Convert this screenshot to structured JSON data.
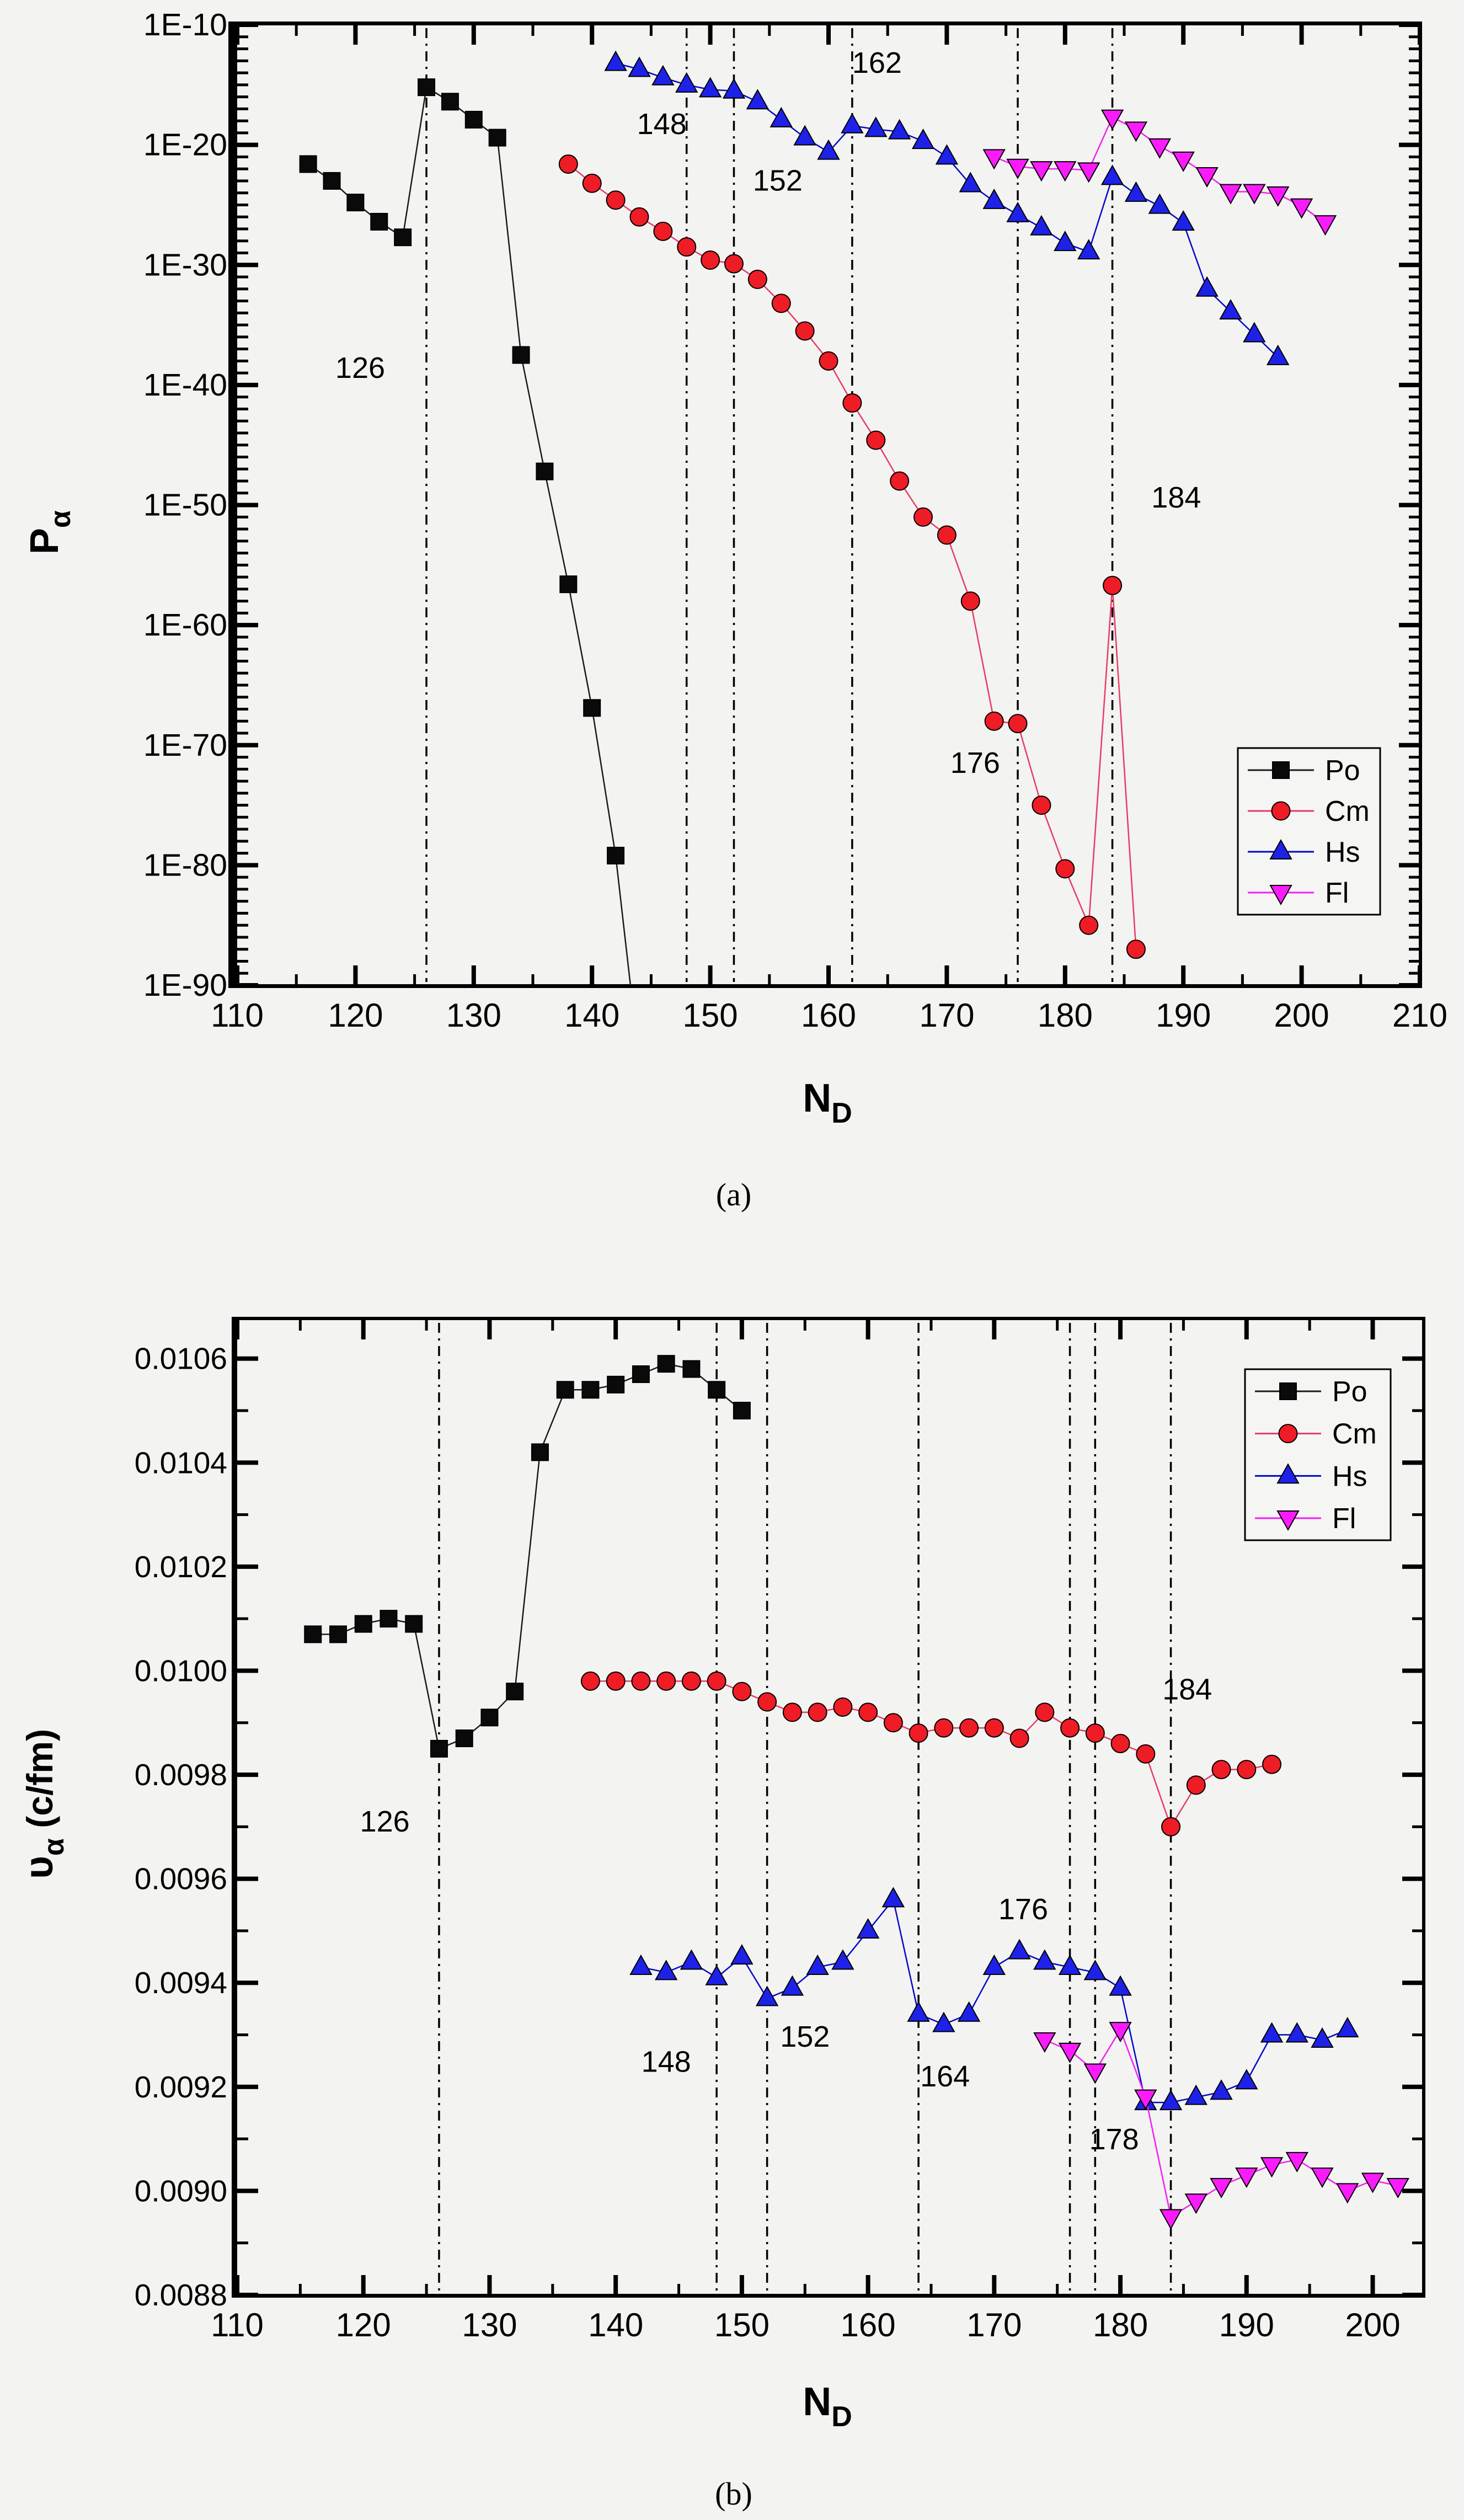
{
  "page": {
    "background": "#f3f3f1"
  },
  "figure": {
    "captions": {
      "a": "(a)",
      "b": "(b)"
    },
    "colors": {
      "po": "#0a0a0a",
      "cm": "#ee1c25",
      "hs": "#1e22e8",
      "fl": "#fa1bfa",
      "po_line": "#1a1a1a",
      "cm_line": "#e73b67",
      "hs_line": "#0008c8",
      "fl_line": "#f41ef4",
      "axis": "#000000",
      "annotation": "#111111"
    }
  },
  "chart_data": [
    {
      "id": "a",
      "type": "line",
      "title": "",
      "xlabel_main": "N",
      "xlabel_sub": "D",
      "ylabel_main": "P",
      "ylabel_sub": "α",
      "ylabel_rest": "",
      "x_axis": {
        "min": 110,
        "max": 210,
        "major_step": 10,
        "minor_step": 5,
        "tick_labels": [
          "110",
          "120",
          "130",
          "140",
          "150",
          "160",
          "170",
          "180",
          "190",
          "200",
          "210"
        ]
      },
      "y_axis": {
        "scale": "log10-exponent",
        "min": -90,
        "max": -10,
        "major_step": 10,
        "minor_step": 1,
        "ticks": [
          {
            "v": -10,
            "t": "1E-10"
          },
          {
            "v": -20,
            "t": "1E-20"
          },
          {
            "v": -30,
            "t": "1E-30"
          },
          {
            "v": -40,
            "t": "1E-40"
          },
          {
            "v": -50,
            "t": "1E-50"
          },
          {
            "v": -60,
            "t": "1E-60"
          },
          {
            "v": -70,
            "t": "1E-70"
          },
          {
            "v": -80,
            "t": "1E-80"
          },
          {
            "v": -90,
            "t": "1E-90"
          }
        ]
      },
      "shell_lines": [
        126,
        148,
        152,
        162,
        176,
        184
      ],
      "annotations": [
        {
          "text": "126",
          "x": 120.4,
          "y": -39.4
        },
        {
          "text": "148",
          "x": 145.9,
          "y": -19.1
        },
        {
          "text": "152",
          "x": 155.7,
          "y": -23.8
        },
        {
          "text": "162",
          "x": 164.1,
          "y": -14.0
        },
        {
          "text": "176",
          "x": 172.4,
          "y": -72.3
        },
        {
          "text": "184",
          "x": 189.4,
          "y": -50.2
        }
      ],
      "legend": {
        "items": [
          "Po",
          "Cm",
          "Hs",
          "Fl"
        ],
        "position": "right-lower"
      },
      "series": [
        {
          "name": "Po",
          "marker": "square",
          "color": "#0a0a0a",
          "line_color": "#1a1a1a",
          "x": [
            116,
            118,
            120,
            122,
            124,
            126,
            128,
            130,
            132,
            134,
            136,
            138,
            140,
            142
          ],
          "y": [
            -21.6,
            -23.0,
            -24.8,
            -26.4,
            -27.7,
            -15.2,
            -16.4,
            -17.9,
            -19.4,
            -37.5,
            -47.2,
            -56.6,
            -66.9,
            -79.2
          ],
          "line_exit": {
            "x": 143.6,
            "y": -93
          }
        },
        {
          "name": "Cm",
          "marker": "circle",
          "color": "#ee1c25",
          "line_color": "#e73b67",
          "x": [
            138,
            140,
            142,
            144,
            146,
            148,
            150,
            152,
            154,
            156,
            158,
            160,
            162,
            164,
            166,
            168,
            170,
            172,
            174,
            176,
            178,
            180,
            182,
            184,
            186
          ],
          "y": [
            -21.6,
            -23.2,
            -24.6,
            -26.0,
            -27.2,
            -28.5,
            -29.6,
            -29.9,
            -31.2,
            -33.2,
            -35.5,
            -38.0,
            -41.5,
            -44.6,
            -48.0,
            -51.0,
            -52.5,
            -58.0,
            -68.0,
            -68.2,
            -75.0,
            -80.3,
            -85.0,
            -56.7,
            -87.0
          ]
        },
        {
          "name": "Hs",
          "marker": "triangle-up",
          "color": "#1e22e8",
          "line_color": "#0008c8",
          "x": [
            142,
            144,
            146,
            148,
            150,
            152,
            154,
            156,
            158,
            160,
            162,
            164,
            166,
            168,
            170,
            172,
            174,
            176,
            178,
            180,
            182,
            184,
            186,
            188,
            190,
            192,
            194,
            196,
            198
          ],
          "y": [
            -13.2,
            -13.7,
            -14.4,
            -15.0,
            -15.4,
            -15.5,
            -16.4,
            -17.9,
            -19.4,
            -20.6,
            -18.4,
            -18.7,
            -18.9,
            -19.7,
            -21.0,
            -23.3,
            -24.7,
            -25.8,
            -26.9,
            -28.2,
            -28.9,
            -22.7,
            -24.1,
            -25.1,
            -26.5,
            -32.0,
            -33.9,
            -35.8,
            -37.7
          ]
        },
        {
          "name": "Fl",
          "marker": "triangle-down",
          "color": "#fa1bfa",
          "line_color": "#f41ef4",
          "x": [
            174,
            176,
            178,
            180,
            182,
            184,
            186,
            188,
            190,
            192,
            194,
            196,
            198,
            200,
            202
          ],
          "y": [
            -21.0,
            -21.8,
            -22.0,
            -22.0,
            -22.1,
            -17.7,
            -18.7,
            -20.1,
            -21.2,
            -22.5,
            -23.9,
            -23.9,
            -24.1,
            -25.1,
            -26.5
          ]
        }
      ]
    },
    {
      "id": "b",
      "type": "line",
      "title": "",
      "xlabel_main": "N",
      "xlabel_sub": "D",
      "ylabel_main": "υ",
      "ylabel_sub": "α",
      "ylabel_rest": " (c/fm)",
      "x_axis": {
        "min": 110,
        "max": 204,
        "major_step": 10,
        "minor_step": 5,
        "tick_labels": [
          "110",
          "120",
          "130",
          "140",
          "150",
          "160",
          "170",
          "180",
          "190",
          "200"
        ]
      },
      "y_axis": {
        "scale": "linear",
        "min": 0.0088,
        "max": 0.010675,
        "major_step": 0.0002,
        "minor_step": 0.0001,
        "ticks": [
          {
            "v": 0.0106,
            "t": "0.0106"
          },
          {
            "v": 0.0104,
            "t": "0.0104"
          },
          {
            "v": 0.0102,
            "t": "0.0102"
          },
          {
            "v": 0.01,
            "t": "0.0100"
          },
          {
            "v": 0.0098,
            "t": "0.0098"
          },
          {
            "v": 0.0096,
            "t": "0.0096"
          },
          {
            "v": 0.0094,
            "t": "0.0094"
          },
          {
            "v": 0.0092,
            "t": "0.0092"
          },
          {
            "v": 0.009,
            "t": "0.0090"
          },
          {
            "v": 0.0088,
            "t": "0.0088"
          }
        ]
      },
      "shell_lines": [
        126,
        148,
        152,
        164,
        176,
        178,
        184
      ],
      "annotations": [
        {
          "text": "126",
          "x": 121.7,
          "y": 0.009691
        },
        {
          "text": "148",
          "x": 144.0,
          "y": 0.009229
        },
        {
          "text": "152",
          "x": 155.0,
          "y": 0.009277
        },
        {
          "text": "164",
          "x": 166.1,
          "y": 0.009201
        },
        {
          "text": "176",
          "x": 172.3,
          "y": 0.009522
        },
        {
          "text": "178",
          "x": 179.5,
          "y": 0.00908
        },
        {
          "text": "184",
          "x": 185.3,
          "y": 0.009945
        }
      ],
      "legend": {
        "items": [
          "Po",
          "Cm",
          "Hs",
          "Fl"
        ],
        "position": "right-upper"
      },
      "series": [
        {
          "name": "Po",
          "marker": "square",
          "color": "#0a0a0a",
          "line_color": "#1a1a1a",
          "x": [
            116,
            118,
            120,
            122,
            124,
            126,
            128,
            130,
            132,
            134,
            136,
            138,
            140,
            142,
            144,
            146,
            148,
            150
          ],
          "y": [
            0.01007,
            0.01007,
            0.01009,
            0.0101,
            0.01009,
            0.00985,
            0.00987,
            0.00991,
            0.00996,
            0.01042,
            0.01054,
            0.01054,
            0.01055,
            0.01057,
            0.01059,
            0.01058,
            0.01054,
            0.0105
          ]
        },
        {
          "name": "Cm",
          "marker": "circle",
          "color": "#ee1c25",
          "line_color": "#e73b67",
          "x": [
            138,
            140,
            142,
            144,
            146,
            148,
            150,
            152,
            154,
            156,
            158,
            160,
            162,
            164,
            166,
            168,
            170,
            172,
            174,
            176,
            178,
            180,
            182,
            184,
            186,
            188,
            190,
            192
          ],
          "y": [
            0.00998,
            0.00998,
            0.00998,
            0.00998,
            0.00998,
            0.00998,
            0.00996,
            0.00994,
            0.00992,
            0.00992,
            0.00993,
            0.00992,
            0.0099,
            0.00988,
            0.00989,
            0.00989,
            0.00989,
            0.00987,
            0.00992,
            0.00989,
            0.00988,
            0.00986,
            0.00984,
            0.0097,
            0.00978,
            0.00981,
            0.00981,
            0.00982
          ]
        },
        {
          "name": "Hs",
          "marker": "triangle-up",
          "color": "#1e22e8",
          "line_color": "#0008c8",
          "x": [
            142,
            144,
            146,
            148,
            150,
            152,
            154,
            156,
            158,
            160,
            162,
            164,
            166,
            168,
            170,
            172,
            174,
            176,
            178,
            180,
            182,
            184,
            186,
            188,
            190,
            192,
            194,
            196,
            198
          ],
          "y": [
            0.00943,
            0.00942,
            0.00944,
            0.00941,
            0.00945,
            0.00937,
            0.00939,
            0.00943,
            0.00944,
            0.0095,
            0.00956,
            0.00934,
            0.00932,
            0.00934,
            0.00943,
            0.00946,
            0.00944,
            0.00943,
            0.00942,
            0.00939,
            0.00917,
            0.00917,
            0.00918,
            0.00919,
            0.00921,
            0.0093,
            0.0093,
            0.00929,
            0.00931
          ]
        },
        {
          "name": "Fl",
          "marker": "triangle-down",
          "color": "#fa1bfa",
          "line_color": "#f41ef4",
          "x": [
            174,
            176,
            178,
            180,
            182,
            184,
            186,
            188,
            190,
            192,
            194,
            196,
            198,
            200,
            202
          ],
          "y": [
            0.00929,
            0.00927,
            0.00923,
            0.00931,
            0.00918,
            0.00895,
            0.00898,
            0.00901,
            0.00903,
            0.00905,
            0.00906,
            0.00903,
            0.009,
            0.00902,
            0.00901
          ]
        }
      ]
    }
  ]
}
